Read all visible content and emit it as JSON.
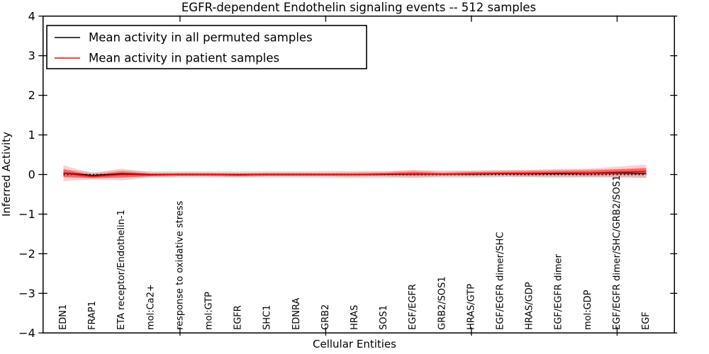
{
  "figure": {
    "title": "EGFR-dependent Endothelin signaling events -- 512 samples",
    "xlabel": "Cellular Entities",
    "ylabel": "Inferred Activity"
  },
  "legend": {
    "position": "upper left",
    "entries": [
      {
        "label": "Mean activity in all permuted samples",
        "color": "#000000"
      },
      {
        "label": "Mean activity in patient samples",
        "color": "#ff0000"
      }
    ]
  },
  "chart_data": {
    "type": "line",
    "title": "EGFR-dependent Endothelin signaling events -- 512 samples",
    "xlabel": "Cellular Entities",
    "ylabel": "Inferred Activity",
    "ylim": [
      -4,
      4
    ],
    "yticks": [
      4,
      3,
      2,
      1,
      0,
      -1,
      -2,
      -3,
      -4
    ],
    "ytick_labels": [
      "4",
      "3",
      "2",
      "1",
      "0",
      "−1",
      "−2",
      "−3",
      "−4"
    ],
    "grid": false,
    "legend_position": "upper left",
    "zero_line": {
      "value": 0,
      "style": "dotted",
      "color": "#000000"
    },
    "xticks_at_category_index": [
      4,
      9,
      14,
      19
    ],
    "categories": [
      "EDN1",
      "FRAP1",
      "ETA receptor/Endothelin-1",
      "mol:Ca2+",
      "response to oxidative stress",
      "mol:GTP",
      "EGFR",
      "SHC1",
      "EDNRA",
      "GRB2",
      "HRAS",
      "SOS1",
      "EGF/EGFR",
      "GRB2/SOS1",
      "HRAS/GTP",
      "EGF/EGFR dimer/SHC",
      "HRAS/GDP",
      "EGF/EGFR dimer",
      "mol:GDP",
      "EGF/EGFR dimer/SHC/GRB2/SOS1",
      "EGF"
    ],
    "series": [
      {
        "name": "Mean activity in all permuted samples",
        "color": "#000000",
        "band_color": "rgba(0,0,0,0.13)",
        "values": [
          0.04,
          -0.02,
          0.02,
          0.0,
          0.0,
          0.0,
          0.0,
          0.0,
          0.0,
          0.0,
          0.0,
          0.0,
          0.01,
          0.01,
          0.01,
          0.02,
          0.02,
          0.02,
          0.03,
          0.04,
          0.03
        ],
        "band_halfwidth": [
          0.1,
          0.08,
          0.09,
          0.08,
          0.08,
          0.08,
          0.08,
          0.08,
          0.08,
          0.09,
          0.09,
          0.09,
          0.09,
          0.09,
          0.09,
          0.09,
          0.09,
          0.1,
          0.1,
          0.1,
          0.11
        ]
      },
      {
        "name": "Mean activity in patient samples",
        "color": "#ff0000",
        "band_outer_color": "rgba(255,0,0,0.18)",
        "band_inner_color": "rgba(255,0,0,0.42)",
        "values": [
          0.03,
          -0.05,
          0.0,
          -0.01,
          0.0,
          0.0,
          -0.01,
          0.0,
          0.0,
          0.0,
          0.0,
          0.01,
          0.02,
          0.01,
          0.02,
          0.03,
          0.03,
          0.04,
          0.04,
          0.06,
          0.08
        ],
        "band_outer_halfwidth": [
          0.2,
          0.08,
          0.15,
          0.06,
          0.05,
          0.05,
          0.05,
          0.05,
          0.05,
          0.05,
          0.06,
          0.06,
          0.1,
          0.06,
          0.07,
          0.08,
          0.09,
          0.1,
          0.11,
          0.14,
          0.17
        ],
        "band_inner_halfwidth": [
          0.1,
          0.04,
          0.08,
          0.03,
          0.03,
          0.03,
          0.03,
          0.03,
          0.03,
          0.03,
          0.03,
          0.03,
          0.05,
          0.03,
          0.04,
          0.04,
          0.05,
          0.05,
          0.06,
          0.07,
          0.09
        ]
      }
    ]
  }
}
